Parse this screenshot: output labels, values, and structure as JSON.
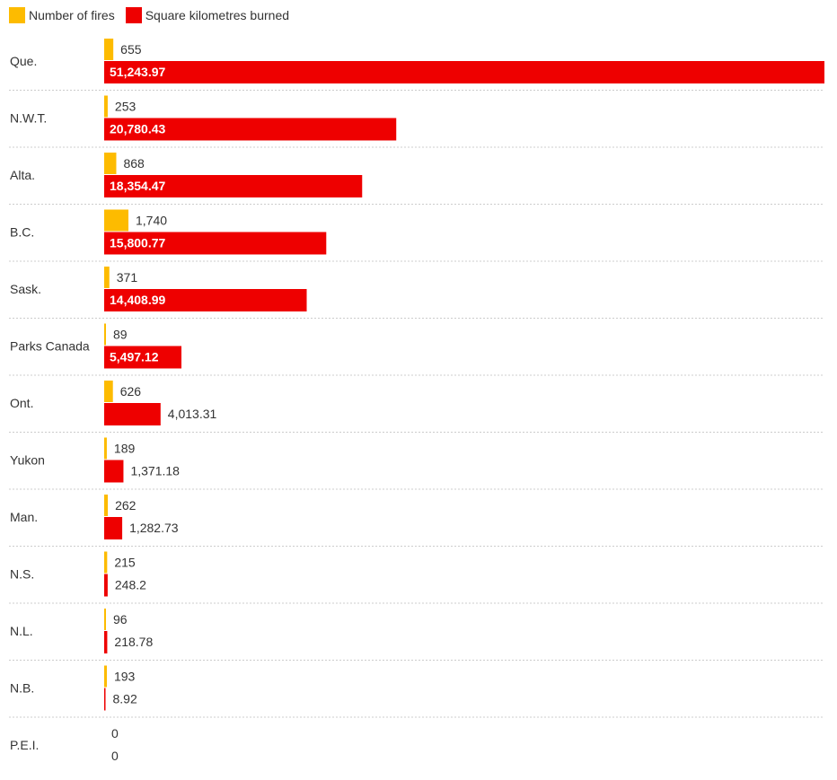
{
  "chart_data": {
    "type": "bar",
    "orientation": "horizontal",
    "categories": [
      "Que.",
      "N.W.T.",
      "Alta.",
      "B.C.",
      "Sask.",
      "Parks Canada",
      "Ont.",
      "Yukon",
      "Man.",
      "N.S.",
      "N.L.",
      "N.B.",
      "P.E.I."
    ],
    "series": [
      {
        "name": "Number of fires",
        "color": "#FDBB00",
        "values": [
          655,
          253,
          868,
          1740,
          371,
          89,
          626,
          189,
          262,
          215,
          96,
          193,
          0
        ],
        "labels": [
          "655",
          "253",
          "868",
          "1,740",
          "371",
          "89",
          "626",
          "189",
          "262",
          "215",
          "96",
          "193",
          "0"
        ]
      },
      {
        "name": "Square kilometres burned",
        "color": "#EE0000",
        "values": [
          51243.97,
          20780.43,
          18354.47,
          15800.77,
          14408.99,
          5497.12,
          4013.31,
          1371.18,
          1282.73,
          248.2,
          218.78,
          8.92,
          0
        ],
        "labels": [
          "51,243.97",
          "20,780.43",
          "18,354.47",
          "15,800.77",
          "14,408.99",
          "5,497.12",
          "4,013.31",
          "1,371.18",
          "1,282.73",
          "248.2",
          "218.78",
          "8.92",
          "0"
        ]
      }
    ],
    "legend_position": "top-left",
    "grid": false
  }
}
